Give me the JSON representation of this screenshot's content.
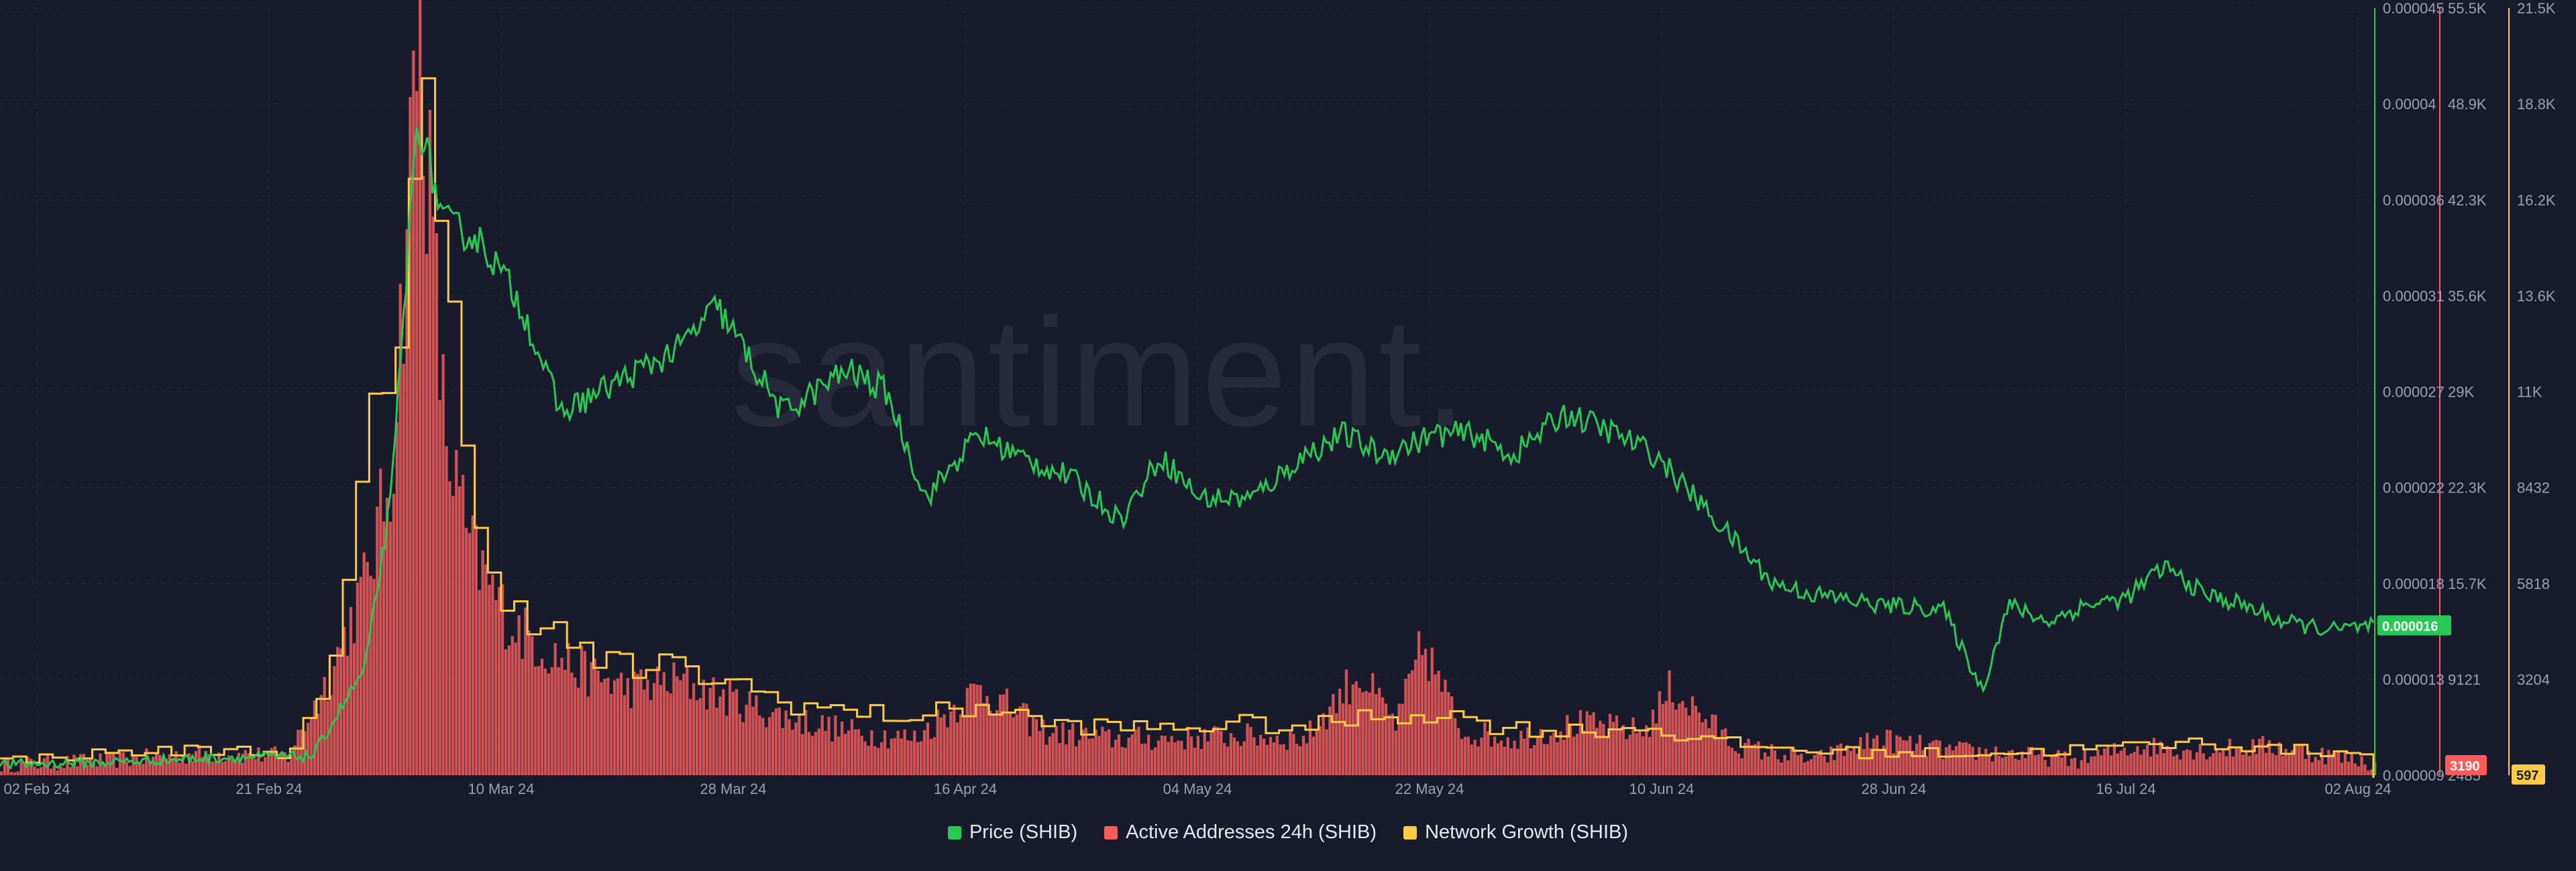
{
  "watermark": "santiment.",
  "legend": [
    {
      "label": "Price (SHIB)",
      "color": "#26c953"
    },
    {
      "label": "Active Addresses 24h (SHIB)",
      "color": "#ff5b5b"
    },
    {
      "label": "Network Growth (SHIB)",
      "color": "#ffcb47"
    }
  ],
  "badges": {
    "price": "0.000016",
    "active_addresses": "3190",
    "network_growth": "597"
  },
  "axes": {
    "x_ticks": [
      "02 Feb 24",
      "21 Feb 24",
      "10 Mar 24",
      "28 Mar 24",
      "16 Apr 24",
      "04 May 24",
      "22 May 24",
      "10 Jun 24",
      "28 Jun 24",
      "16 Jul 24",
      "02 Aug 24"
    ],
    "price_ticks": [
      "0.000045",
      "0.00004",
      "0.000036",
      "0.000031",
      "0.000027",
      "0.000022",
      "0.000018",
      "0.000013",
      "0.000009"
    ],
    "active_ticks": [
      "55.5K",
      "48.9K",
      "42.3K",
      "35.6K",
      "29K",
      "22.3K",
      "15.7K",
      "9121",
      "2485"
    ],
    "growth_ticks": [
      "21.5K",
      "18.8K",
      "16.2K",
      "13.6K",
      "11K",
      "8432",
      "5818",
      "3204"
    ]
  },
  "chart_data": {
    "type": "line",
    "x_range": [
      "2024-02-02",
      "2024-08-02"
    ],
    "grid": true,
    "legend_position": "bottom-center",
    "x_ticks": [
      "02 Feb 24",
      "21 Feb 24",
      "10 Mar 24",
      "28 Mar 24",
      "16 Apr 24",
      "04 May 24",
      "22 May 24",
      "10 Jun 24",
      "28 Jun 24",
      "16 Jul 24",
      "02 Aug 24"
    ],
    "series": [
      {
        "name": "Price (SHIB)",
        "color": "#26c953",
        "axis": "right-1",
        "ylim": [
          9e-06,
          4.5e-05
        ],
        "x": [
          "2024-02-02",
          "2024-02-10",
          "2024-02-18",
          "2024-02-26",
          "2024-02-28",
          "2024-03-01",
          "2024-03-03",
          "2024-03-05",
          "2024-03-07",
          "2024-03-10",
          "2024-03-13",
          "2024-03-16",
          "2024-03-19",
          "2024-03-22",
          "2024-03-25",
          "2024-03-28",
          "2024-04-02",
          "2024-04-07",
          "2024-04-10",
          "2024-04-13",
          "2024-04-17",
          "2024-04-20",
          "2024-04-24",
          "2024-04-28",
          "2024-05-01",
          "2024-05-04",
          "2024-05-08",
          "2024-05-12",
          "2024-05-15",
          "2024-05-18",
          "2024-05-22",
          "2024-05-25",
          "2024-05-28",
          "2024-06-01",
          "2024-06-05",
          "2024-06-08",
          "2024-06-11",
          "2024-06-14",
          "2024-06-17",
          "2024-06-20",
          "2024-06-25",
          "2024-06-30",
          "2024-07-03",
          "2024-07-05",
          "2024-07-08",
          "2024-07-11",
          "2024-07-14",
          "2024-07-17",
          "2024-07-20",
          "2024-07-23",
          "2024-07-26",
          "2024-07-30",
          "2024-08-02"
        ],
        "values": [
          9.5e-06,
          9.6e-06,
          9.8e-06,
          9.9e-06,
          1.2e-05,
          1.4e-05,
          2.2e-05,
          4e-05,
          3.5e-05,
          3.4e-05,
          3.1e-05,
          2.6e-05,
          2.7e-05,
          2.8e-05,
          2.9e-05,
          3.1e-05,
          2.6e-05,
          2.8e-05,
          2.7e-05,
          2.2e-05,
          2.5e-05,
          2.4e-05,
          2.3e-05,
          2.1e-05,
          2.4e-05,
          2.2e-05,
          2.2e-05,
          2.4e-05,
          2.5e-05,
          2.4e-05,
          2.5e-05,
          2.5e-05,
          2.4e-05,
          2.6e-05,
          2.5e-05,
          2.4e-05,
          2.2e-05,
          2e-05,
          1.8e-05,
          1.75e-05,
          1.7e-05,
          1.68e-05,
          1.3e-05,
          1.7e-05,
          1.62e-05,
          1.7e-05,
          1.73e-05,
          1.88e-05,
          1.75e-05,
          1.7e-05,
          1.62e-05,
          1.58e-05,
          1.6e-05
        ]
      },
      {
        "name": "Active Addresses 24h (SHIB)",
        "color": "#ff5b5b",
        "axis": "right-2",
        "ylim": [
          2485,
          55500
        ],
        "x": [
          "2024-02-02",
          "2024-02-10",
          "2024-02-18",
          "2024-02-24",
          "2024-02-27",
          "2024-03-01",
          "2024-03-03",
          "2024-03-05",
          "2024-03-07",
          "2024-03-09",
          "2024-03-12",
          "2024-03-15",
          "2024-03-18",
          "2024-03-21",
          "2024-03-25",
          "2024-03-28",
          "2024-04-02",
          "2024-04-07",
          "2024-04-12",
          "2024-04-17",
          "2024-04-22",
          "2024-04-27",
          "2024-05-02",
          "2024-05-07",
          "2024-05-12",
          "2024-05-16",
          "2024-05-19",
          "2024-05-21",
          "2024-05-24",
          "2024-05-28",
          "2024-06-02",
          "2024-06-07",
          "2024-06-09",
          "2024-06-14",
          "2024-06-20",
          "2024-06-25",
          "2024-06-30",
          "2024-07-05",
          "2024-07-10",
          "2024-07-15",
          "2024-07-20",
          "2024-07-25",
          "2024-08-01",
          "2024-08-02"
        ],
        "values": [
          3200,
          3500,
          4000,
          3800,
          9000,
          16000,
          24000,
          55000,
          26000,
          18000,
          13000,
          11000,
          9500,
          8500,
          9000,
          8000,
          6500,
          5500,
          5000,
          8500,
          5500,
          5000,
          5000,
          5200,
          5000,
          9500,
          6000,
          11500,
          5500,
          5000,
          6000,
          5500,
          8500,
          4500,
          3500,
          5000,
          4200,
          4000,
          3500,
          4500,
          4200,
          4500,
          3500,
          3190
        ]
      },
      {
        "name": "Network Growth (SHIB)",
        "color": "#ffcb47",
        "axis": "right-3",
        "ylim": [
          597,
          21500
        ],
        "x": [
          "2024-02-02",
          "2024-02-10",
          "2024-02-18",
          "2024-02-24",
          "2024-02-27",
          "2024-03-01",
          "2024-03-03",
          "2024-03-05",
          "2024-03-07",
          "2024-03-09",
          "2024-03-12",
          "2024-03-15",
          "2024-03-18",
          "2024-03-21",
          "2024-03-25",
          "2024-03-28",
          "2024-04-02",
          "2024-04-07",
          "2024-04-12",
          "2024-04-17",
          "2024-04-22",
          "2024-04-27",
          "2024-05-02",
          "2024-05-07",
          "2024-05-12",
          "2024-05-17",
          "2024-05-22",
          "2024-05-27",
          "2024-06-01",
          "2024-06-07",
          "2024-06-12",
          "2024-06-18",
          "2024-06-24",
          "2024-06-30",
          "2024-07-05",
          "2024-07-10",
          "2024-07-15",
          "2024-07-20",
          "2024-07-25",
          "2024-08-01",
          "2024-08-02"
        ],
        "values": [
          1000,
          1200,
          1300,
          1200,
          3000,
          9500,
          12000,
          21000,
          14000,
          7000,
          5500,
          4500,
          3800,
          3500,
          3500,
          3200,
          2600,
          2300,
          2200,
          2500,
          2000,
          1900,
          1900,
          2000,
          1900,
          2200,
          2300,
          1900,
          1800,
          1900,
          1500,
          1300,
          1200,
          1200,
          1200,
          1300,
          1400,
          1500,
          1300,
          1200,
          597
        ]
      }
    ]
  }
}
